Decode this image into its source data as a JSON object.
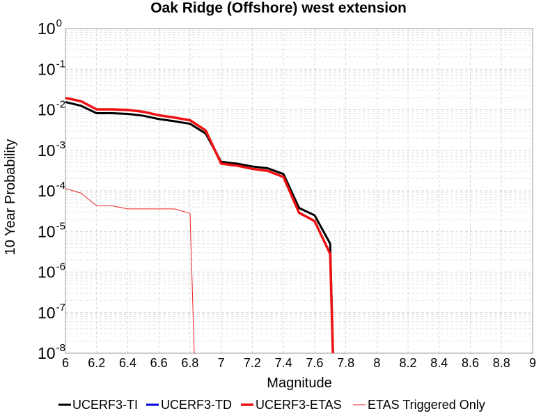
{
  "chart_data": {
    "type": "line",
    "title": "Oak Ridge (Offshore) west extension",
    "xlabel": "Magnitude",
    "ylabel": "10 Year Probability",
    "xlim": [
      6,
      9
    ],
    "ylim": [
      1e-08,
      1
    ],
    "yscale": "log",
    "grid": true,
    "legend_position": "bottom",
    "xticks": [
      "6",
      "6.2",
      "6.4",
      "6.6",
      "6.8",
      "7",
      "7.2",
      "7.4",
      "7.6",
      "7.8",
      "8",
      "8.2",
      "8.4",
      "8.6",
      "8.8",
      "9"
    ],
    "yticks": [
      {
        "base": "10",
        "exp": "0"
      },
      {
        "base": "10",
        "exp": "-1"
      },
      {
        "base": "10",
        "exp": "-2"
      },
      {
        "base": "10",
        "exp": "-3"
      },
      {
        "base": "10",
        "exp": "-4"
      },
      {
        "base": "10",
        "exp": "-5"
      },
      {
        "base": "10",
        "exp": "-6"
      },
      {
        "base": "10",
        "exp": "-7"
      },
      {
        "base": "10",
        "exp": "-8"
      }
    ],
    "series": [
      {
        "name": "UCERF3-TI",
        "color": "#000000",
        "width": 3,
        "x": [
          6.0,
          6.1,
          6.2,
          6.3,
          6.4,
          6.5,
          6.6,
          6.7,
          6.8,
          6.9,
          7.0,
          7.1,
          7.2,
          7.3,
          7.4,
          7.5,
          7.6,
          7.7,
          7.72
        ],
        "y": [
          0.0155,
          0.0125,
          0.0082,
          0.0082,
          0.0079,
          0.0071,
          0.0059,
          0.0052,
          0.0045,
          0.0026,
          0.00052,
          0.00047,
          0.0004,
          0.00036,
          0.00026,
          3.8e-05,
          2.5e-05,
          5e-06,
          1e-09
        ]
      },
      {
        "name": "UCERF3-TD",
        "color": "#0000dd",
        "width": 3,
        "x": [
          6.0,
          6.1,
          6.2,
          6.3,
          6.4,
          6.5,
          6.6,
          6.7,
          6.8,
          6.9,
          7.0,
          7.1,
          7.2,
          7.3,
          7.4,
          7.5,
          7.6,
          7.7,
          7.72
        ],
        "y": [
          0.0195,
          0.0162,
          0.0102,
          0.0102,
          0.0099,
          0.0089,
          0.0073,
          0.0064,
          0.0055,
          0.0031,
          0.00047,
          0.00042,
          0.00035,
          0.00031,
          0.00022,
          2.9e-05,
          1.8e-05,
          2.8e-06,
          1e-09
        ]
      },
      {
        "name": "UCERF3-ETAS",
        "color": "#ee1111",
        "width": 3.5,
        "x": [
          6.0,
          6.1,
          6.2,
          6.3,
          6.4,
          6.5,
          6.6,
          6.7,
          6.8,
          6.9,
          7.0,
          7.1,
          7.2,
          7.3,
          7.4,
          7.5,
          7.6,
          7.7,
          7.72
        ],
        "y": [
          0.0195,
          0.0162,
          0.0102,
          0.0102,
          0.0099,
          0.0089,
          0.0073,
          0.0064,
          0.0055,
          0.0031,
          0.00047,
          0.00042,
          0.00035,
          0.00031,
          0.00022,
          2.9e-05,
          1.8e-05,
          2.8e-06,
          1e-09
        ]
      },
      {
        "name": "ETAS Triggered Only",
        "color": "#ee2222",
        "width": 1,
        "x": [
          6.0,
          6.1,
          6.2,
          6.3,
          6.4,
          6.5,
          6.6,
          6.7,
          6.8,
          6.83
        ],
        "y": [
          0.000115,
          8.8e-05,
          4.3e-05,
          4.3e-05,
          3.6e-05,
          3.6e-05,
          3.6e-05,
          3.6e-05,
          2.8e-05,
          1e-09
        ]
      }
    ]
  }
}
